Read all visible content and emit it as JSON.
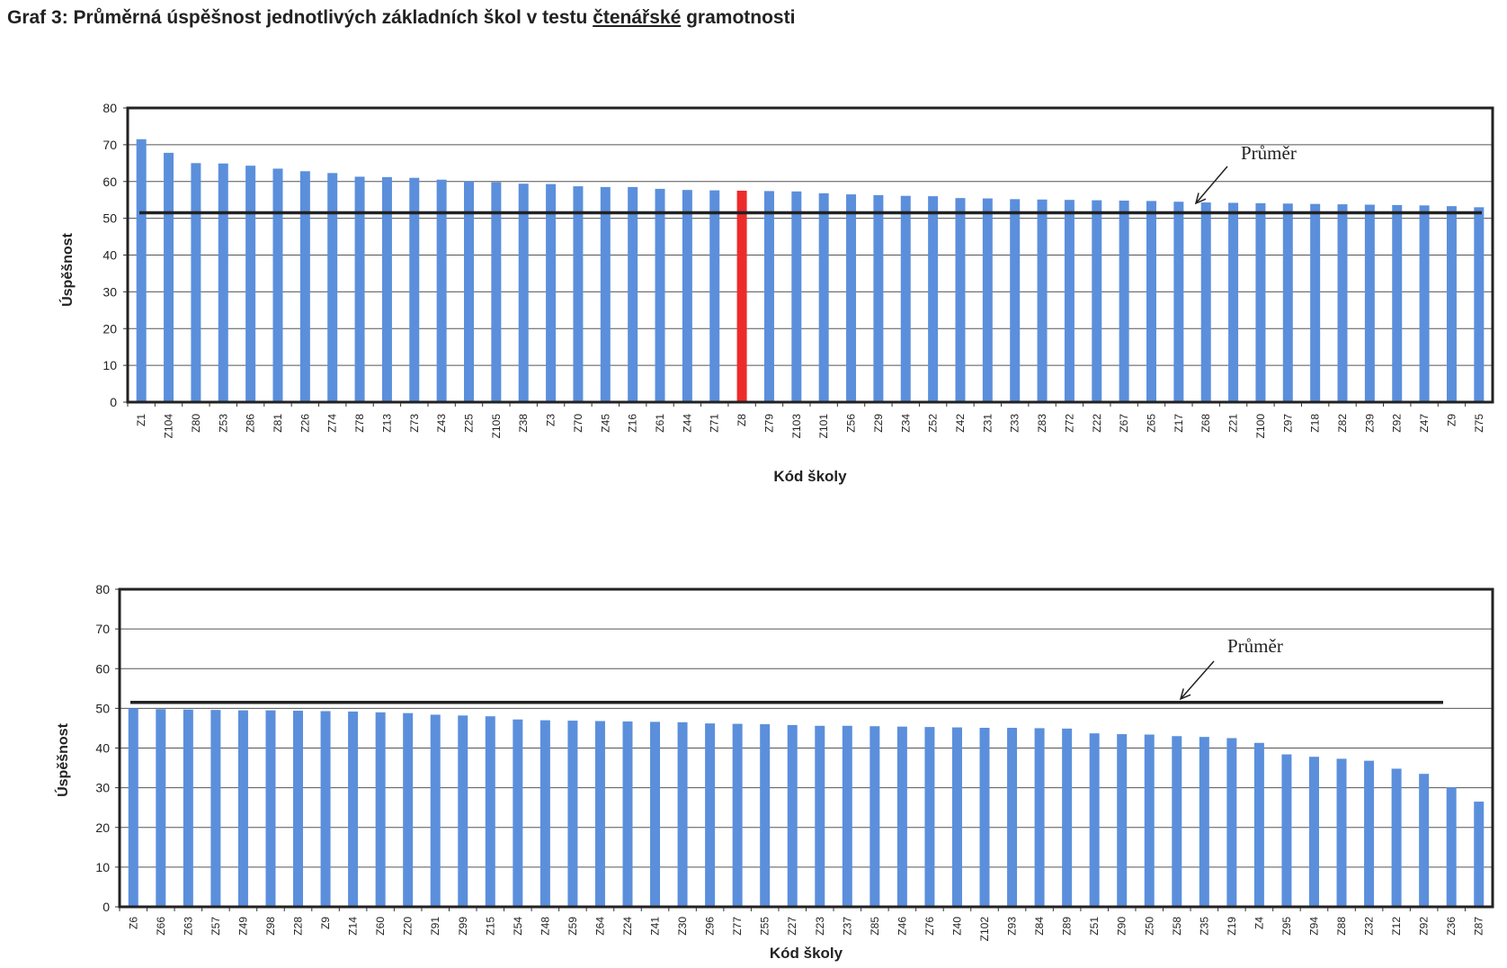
{
  "title": {
    "prefix": "Graf 3: Průměrná úspěšnost jednotlivých základních škol v testu ",
    "underlined": "čtenářské",
    "suffix": " gramotnosti"
  },
  "chart_data": [
    {
      "type": "bar",
      "ylabel": "Úspěšnost",
      "xlabel": "Kód školy",
      "ylim": [
        0,
        80
      ],
      "yticks": [
        0,
        10,
        20,
        30,
        40,
        50,
        60,
        70,
        80
      ],
      "grid": true,
      "average_label": "Průměr",
      "average": 51.5,
      "highlight_color": "#ee2b2b",
      "bar_color": "#5b8fdc",
      "categories": [
        "Z1",
        "Z104",
        "Z80",
        "Z53",
        "Z86",
        "Z81",
        "Z26",
        "Z74",
        "Z78",
        "Z13",
        "Z73",
        "Z43",
        "Z25",
        "Z105",
        "Z38",
        "Z3",
        "Z70",
        "Z45",
        "Z16",
        "Z61",
        "Z44",
        "Z71",
        "Z8",
        "Z79",
        "Z103",
        "Z101",
        "Z56",
        "Z29",
        "Z34",
        "Z52",
        "Z42",
        "Z31",
        "Z33",
        "Z83",
        "Z72",
        "Z22",
        "Z67",
        "Z65",
        "Z17",
        "Z68",
        "Z21",
        "Z100",
        "Z97",
        "Z18",
        "Z82",
        "Z39",
        "Z92",
        "Z47",
        "Z9",
        "Z75"
      ],
      "values": [
        71.5,
        67.8,
        65.0,
        64.9,
        64.3,
        63.5,
        62.8,
        62.3,
        61.3,
        61.2,
        61.0,
        60.5,
        60.0,
        59.8,
        59.4,
        59.3,
        58.7,
        58.5,
        58.5,
        58.0,
        57.7,
        57.6,
        57.5,
        57.4,
        57.3,
        56.8,
        56.5,
        56.3,
        56.1,
        56.0,
        55.5,
        55.4,
        55.2,
        55.1,
        55.0,
        54.9,
        54.8,
        54.7,
        54.5,
        54.3,
        54.2,
        54.1,
        54.0,
        53.9,
        53.8,
        53.7,
        53.6,
        53.5,
        53.3,
        53.0
      ],
      "highlight": [
        "Z8"
      ]
    },
    {
      "type": "bar",
      "ylabel": "Úspěšnost",
      "xlabel": "Kód školy",
      "ylim": [
        0,
        80
      ],
      "yticks": [
        0,
        10,
        20,
        30,
        40,
        50,
        60,
        70,
        80
      ],
      "grid": true,
      "average_label": "Průměr",
      "average": 51.5,
      "bar_color": "#5b8fdc",
      "categories": [
        "Z6",
        "Z66",
        "Z63",
        "Z57",
        "Z49",
        "Z98",
        "Z28",
        "Z9",
        "Z14",
        "Z60",
        "Z20",
        "Z91",
        "Z99",
        "Z15",
        "Z54",
        "Z48",
        "Z59",
        "Z64",
        "Z24",
        "Z41",
        "Z30",
        "Z96",
        "Z77",
        "Z55",
        "Z27",
        "Z23",
        "Z37",
        "Z85",
        "Z46",
        "Z76",
        "Z40",
        "Z102",
        "Z93",
        "Z84",
        "Z89",
        "Z51",
        "Z90",
        "Z50",
        "Z58",
        "Z35",
        "Z19",
        "Z4",
        "Z95",
        "Z94",
        "Z88",
        "Z32",
        "Z12",
        "Z92",
        "Z36",
        "Z87"
      ],
      "values": [
        50.0,
        49.8,
        49.7,
        49.6,
        49.5,
        49.5,
        49.4,
        49.3,
        49.2,
        49.0,
        48.8,
        48.4,
        48.2,
        48.0,
        47.2,
        47.0,
        46.9,
        46.8,
        46.7,
        46.6,
        46.5,
        46.2,
        46.1,
        46.0,
        45.8,
        45.6,
        45.6,
        45.5,
        45.4,
        45.3,
        45.2,
        45.1,
        45.1,
        45.0,
        44.9,
        43.7,
        43.5,
        43.4,
        43.0,
        42.8,
        42.5,
        41.3,
        38.4,
        37.8,
        37.3,
        36.8,
        34.8,
        33.5,
        30.1,
        26.5
      ],
      "highlight": []
    }
  ]
}
